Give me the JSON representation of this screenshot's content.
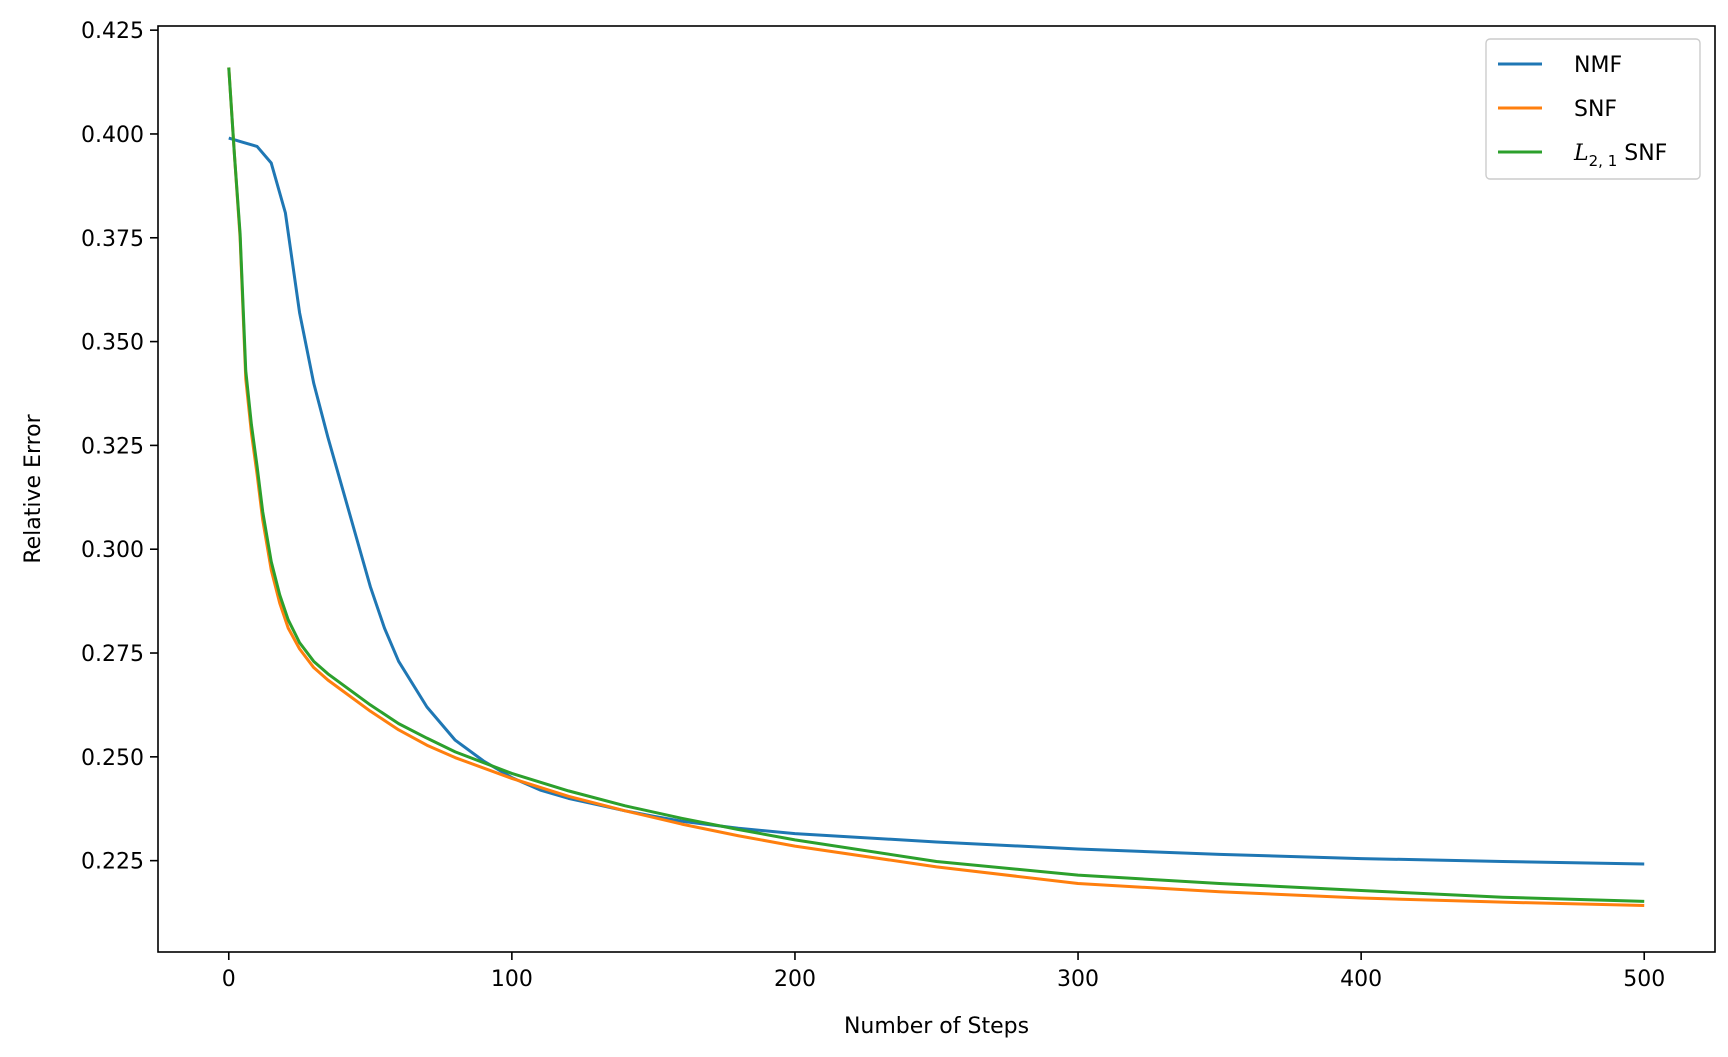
{
  "chart_data": {
    "type": "line",
    "title": "",
    "xlabel": "Number of Steps",
    "ylabel": "Relative Error",
    "xlim": [
      -25,
      525
    ],
    "ylim": [
      0.203,
      0.426
    ],
    "xticks": [
      0,
      100,
      200,
      300,
      400,
      500
    ],
    "xtick_labels": [
      "0",
      "100",
      "200",
      "300",
      "400",
      "500"
    ],
    "yticks": [
      0.225,
      0.25,
      0.275,
      0.3,
      0.325,
      0.35,
      0.375,
      0.4,
      0.425
    ],
    "ytick_labels": [
      "0.225",
      "0.250",
      "0.275",
      "0.300",
      "0.325",
      "0.350",
      "0.375",
      "0.400",
      "0.425"
    ],
    "grid": false,
    "legend_position": "top-right",
    "series": [
      {
        "name": "NMF",
        "color": "#1f77b4",
        "x": [
          0,
          5,
          10,
          15,
          20,
          25,
          30,
          35,
          40,
          45,
          50,
          55,
          60,
          70,
          80,
          90,
          100,
          110,
          120,
          130,
          140,
          150,
          160,
          180,
          200,
          250,
          300,
          350,
          400,
          450,
          500
        ],
        "y": [
          0.399,
          0.398,
          0.397,
          0.393,
          0.381,
          0.357,
          0.34,
          0.327,
          0.315,
          0.303,
          0.291,
          0.281,
          0.273,
          0.262,
          0.254,
          0.249,
          0.245,
          0.242,
          0.24,
          0.2385,
          0.237,
          0.2357,
          0.2345,
          0.2328,
          0.2315,
          0.2295,
          0.2278,
          0.2265,
          0.2255,
          0.2248,
          0.2242
        ]
      },
      {
        "name": "SNF",
        "color": "#ff7f0e",
        "x": [
          0,
          2,
          4,
          6,
          8,
          10,
          12,
          15,
          18,
          21,
          25,
          30,
          35,
          40,
          50,
          60,
          70,
          80,
          100,
          120,
          140,
          160,
          180,
          200,
          250,
          300,
          350,
          400,
          450,
          500
        ],
        "y": [
          0.416,
          0.395,
          0.375,
          0.341,
          0.328,
          0.318,
          0.307,
          0.295,
          0.287,
          0.281,
          0.276,
          0.2715,
          0.2685,
          0.266,
          0.261,
          0.2565,
          0.2528,
          0.2498,
          0.2448,
          0.2405,
          0.237,
          0.2338,
          0.231,
          0.2285,
          0.2235,
          0.2195,
          0.2175,
          0.216,
          0.215,
          0.2142
        ]
      },
      {
        "name": "L2,1 SNF",
        "label_main": "L",
        "label_sub": "2, 1",
        "label_rest": " SNF",
        "color": "#2ca02c",
        "x": [
          0,
          2,
          4,
          6,
          8,
          10,
          12,
          15,
          18,
          21,
          25,
          30,
          35,
          40,
          50,
          60,
          70,
          80,
          100,
          120,
          140,
          160,
          180,
          200,
          250,
          300,
          350,
          400,
          450,
          500
        ],
        "y": [
          0.416,
          0.395,
          0.376,
          0.343,
          0.33,
          0.32,
          0.309,
          0.297,
          0.289,
          0.283,
          0.2775,
          0.273,
          0.27,
          0.2675,
          0.2625,
          0.258,
          0.2545,
          0.2512,
          0.246,
          0.2418,
          0.2382,
          0.2352,
          0.2325,
          0.23,
          0.2248,
          0.2215,
          0.2195,
          0.2178,
          0.2162,
          0.2152
        ]
      }
    ]
  }
}
